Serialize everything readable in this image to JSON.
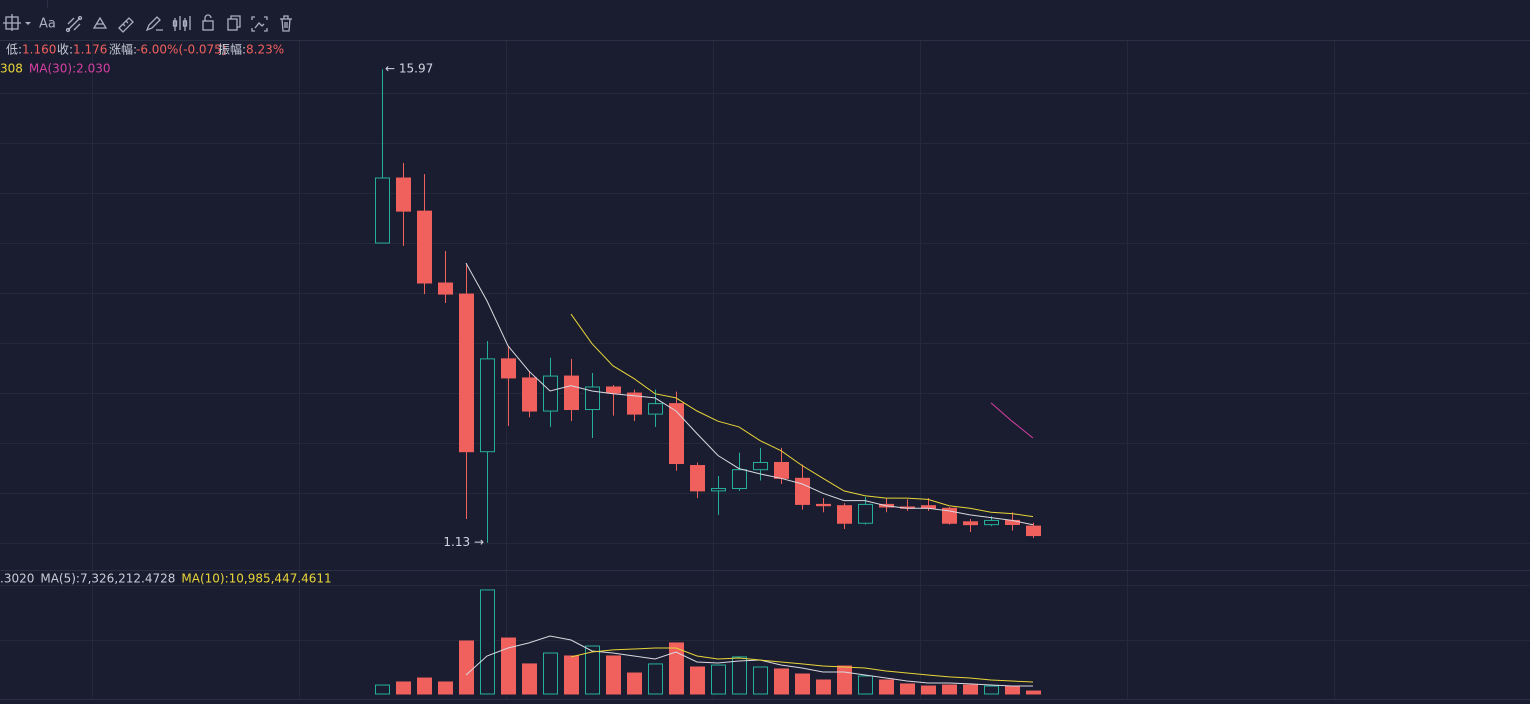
{
  "toolbar": {
    "font_button": "Aa"
  },
  "info_bar": {
    "low_label": "低:",
    "low": "1.160",
    "close_label": "收:",
    "close": "1.176",
    "change_label": "涨幅:",
    "change": "-6.00%(-0.075)",
    "amplitude_label": "振幅:",
    "amplitude": "8.23%"
  },
  "chart_data": [
    {
      "type": "candlestick",
      "log_scale": true,
      "ylim": [
        0.97,
        18.7
      ],
      "up_color": "#26b09c",
      "down_color": "#f0605d",
      "open": [
        6.04,
        8.69,
        7.22,
        4.83,
        4.54,
        1.88,
        3.16,
        2.84,
        2.36,
        2.87,
        2.38,
        2.7,
        2.61,
        2.32,
        2.46,
        1.74,
        1.51,
        1.53,
        1.7,
        1.77,
        1.62,
        1.4,
        1.39,
        1.26,
        1.4,
        1.38,
        1.39,
        1.37,
        1.27,
        1.25,
        1.28,
        1.24
      ],
      "high": [
        15.97,
        9.45,
        8.88,
        5.78,
        5.4,
        3.49,
        3.4,
        2.95,
        3.18,
        3.16,
        2.92,
        2.73,
        2.66,
        2.66,
        2.63,
        1.77,
        1.64,
        1.87,
        1.92,
        1.92,
        1.75,
        1.45,
        1.41,
        1.46,
        1.45,
        1.44,
        1.45,
        1.38,
        1.29,
        1.31,
        1.34,
        1.263
      ],
      "low": [
        6.04,
        5.94,
        4.54,
        4.32,
        1.29,
        1.13,
        2.17,
        2.28,
        2.16,
        2.23,
        2.03,
        2.3,
        2.23,
        2.16,
        1.69,
        1.45,
        1.32,
        1.51,
        1.6,
        1.57,
        1.36,
        1.34,
        1.22,
        1.25,
        1.34,
        1.35,
        1.35,
        1.25,
        1.2,
        1.24,
        1.21,
        1.16
      ],
      "close": [
        8.69,
        7.22,
        4.83,
        4.54,
        1.88,
        3.16,
        2.84,
        2.36,
        2.87,
        2.38,
        2.7,
        2.61,
        2.32,
        2.46,
        1.76,
        1.51,
        1.53,
        1.7,
        1.77,
        1.62,
        1.4,
        1.39,
        1.26,
        1.4,
        1.38,
        1.37,
        1.37,
        1.26,
        1.25,
        1.28,
        1.251,
        1.176
      ],
      "high_label": "← 15.97",
      "low_label": "1.13 →",
      "ma_lines": [
        {
          "color": "#d9d9e0",
          "values": [
            null,
            null,
            null,
            null,
            5.4,
            4.37,
            3.4,
            2.95,
            2.64,
            2.72,
            2.64,
            2.6,
            2.57,
            2.54,
            2.36,
            2.08,
            1.84,
            1.71,
            1.66,
            1.62,
            1.57,
            1.49,
            1.43,
            1.43,
            1.39,
            1.37,
            1.37,
            1.35,
            1.32,
            1.3,
            1.28,
            1.25
          ]
        },
        {
          "color": "#e8d53a",
          "values": [
            null,
            null,
            null,
            null,
            null,
            null,
            null,
            null,
            null,
            4.06,
            3.44,
            3.04,
            2.83,
            2.6,
            2.54,
            2.36,
            2.23,
            2.16,
            2.0,
            1.89,
            1.74,
            1.62,
            1.51,
            1.47,
            1.45,
            1.45,
            1.44,
            1.39,
            1.37,
            1.34,
            1.33,
            1.308
          ]
        },
        {
          "color": "#d63fa3",
          "values": [
            null,
            null,
            null,
            null,
            null,
            null,
            null,
            null,
            null,
            null,
            null,
            null,
            null,
            null,
            null,
            null,
            null,
            null,
            null,
            null,
            null,
            null,
            null,
            null,
            null,
            null,
            null,
            null,
            null,
            2.47,
            2.23,
            2.03
          ]
        }
      ],
      "legend": [
        {
          "text": "308",
          "color": "#e8d53a"
        },
        {
          "text": "MA(30):2.030",
          "color": "#d63fa3"
        }
      ]
    },
    {
      "type": "volume",
      "ylim": [
        0,
        111600000
      ],
      "values": [
        8200000,
        11000000,
        14600000,
        11000000,
        48500000,
        95200000,
        51200000,
        27500000,
        37500000,
        34800000,
        43900000,
        34800000,
        19200000,
        27500000,
        46700000,
        24700000,
        26500000,
        33900000,
        24700000,
        22900000,
        18300000,
        12800000,
        25600000,
        16500000,
        12800000,
        9200000,
        7300000,
        8200000,
        8200000,
        7300000,
        7300000,
        2700000
      ],
      "ma_lines": [
        {
          "color": "#d9d9e0",
          "values": [
            null,
            null,
            null,
            null,
            17400000,
            34800000,
            42100000,
            46700000,
            53100000,
            49400000,
            39300000,
            37500000,
            34800000,
            32000000,
            38400000,
            29300000,
            28400000,
            30200000,
            31100000,
            26500000,
            23800000,
            20100000,
            20100000,
            17400000,
            14600000,
            11900000,
            10100000,
            10100000,
            9200000,
            8200000,
            7300000,
            7326212
          ]
        },
        {
          "color": "#e8d53a",
          "values": [
            null,
            null,
            null,
            null,
            null,
            null,
            null,
            null,
            null,
            33900000,
            38400000,
            40300000,
            41200000,
            42100000,
            42100000,
            34800000,
            32000000,
            32900000,
            31100000,
            29300000,
            27500000,
            25600000,
            24700000,
            23800000,
            21000000,
            19200000,
            17400000,
            15600000,
            14600000,
            12800000,
            11900000,
            10985447
          ]
        }
      ],
      "legend": [
        {
          "text": ".3020",
          "color": "#c8ccd8"
        },
        {
          "text": "MA(5):7,326,212.4728",
          "color": "#c8ccd8"
        },
        {
          "text": "MA(10):10,985,447.4611",
          "color": "#e8d53a"
        }
      ]
    }
  ]
}
